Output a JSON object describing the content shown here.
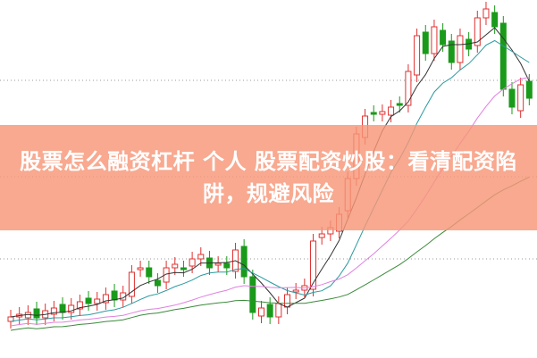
{
  "title": "股票怎么融资杠杆 个人 股票配资炒股：看清配资陷阱，规避风险",
  "colors": {
    "up": "#e03030",
    "down": "#1a9a1a",
    "banner": "#f69678",
    "ma5": "#333333",
    "ma10": "#2a9aa0",
    "ma20": "#e080e0",
    "ma60": "#3a8a3a"
  }
}
